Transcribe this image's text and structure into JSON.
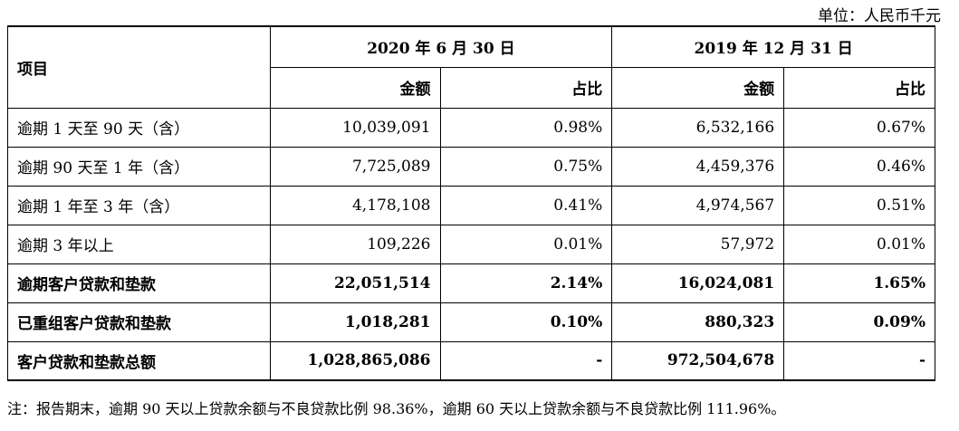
{
  "unit": "单位：人民币千元",
  "header": {
    "item": "项目",
    "period1": "2020 年 6 月 30 日",
    "period2": "2019 年 12 月 31 日",
    "amount": "金额",
    "ratio": "占比"
  },
  "rows": [
    {
      "label": "逾期 1 天至 90 天（含）",
      "amt1": "10,039,091",
      "pct1": "0.98%",
      "amt2": "6,532,166",
      "pct2": "0.67%"
    },
    {
      "label": "逾期 90 天至 1 年（含）",
      "amt1": "7,725,089",
      "pct1": "0.75%",
      "amt2": "4,459,376",
      "pct2": "0.46%"
    },
    {
      "label": "逾期 1 年至 3 年（含）",
      "amt1": "4,178,108",
      "pct1": "0.41%",
      "amt2": "4,974,567",
      "pct2": "0.51%"
    },
    {
      "label": "逾期 3 年以上",
      "amt1": "109,226",
      "pct1": "0.01%",
      "amt2": "57,972",
      "pct2": "0.01%"
    },
    {
      "label": "逾期客户贷款和垫款",
      "amt1": "22,051,514",
      "pct1": "2.14%",
      "amt2": "16,024,081",
      "pct2": "1.65%"
    },
    {
      "label": "已重组客户贷款和垫款",
      "amt1": "1,018,281",
      "pct1": "0.10%",
      "amt2": "880,323",
      "pct2": "0.09%"
    },
    {
      "label": "客户贷款和垫款总额",
      "amt1": "1,028,865,086",
      "pct1": "-",
      "amt2": "972,504,678",
      "pct2": "-"
    }
  ],
  "note": "注：报告期末，逾期 90 天以上贷款余额与不良贷款比例 98.36%，逾期 60 天以上贷款余额与不良贷款比例 111.96%。"
}
